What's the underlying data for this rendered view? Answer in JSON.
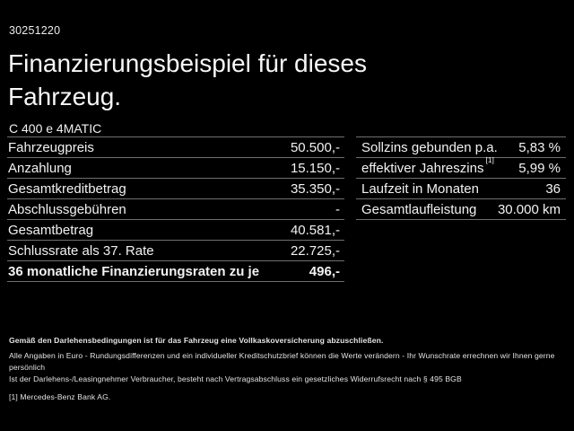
{
  "page": {
    "background": "#000000",
    "text_color": "#f2f2f2",
    "divider_color": "#6f6f6f"
  },
  "header": {
    "ref_number": "30251220",
    "title_line1": "Finanzierungsbeispiel für dieses",
    "title_line2": "Fahrzeug.",
    "model": "C 400 e 4MATIC"
  },
  "left_table": {
    "rows": [
      {
        "label": "Fahrzeugpreis",
        "value": "50.500,-"
      },
      {
        "label": "Anzahlung",
        "value": "15.150,-"
      },
      {
        "label": "Gesamtkreditbetrag",
        "value": "35.350,-"
      },
      {
        "label": "Abschlussgebühren",
        "value": "-"
      },
      {
        "label": "Gesamtbetrag",
        "value": "40.581,-"
      },
      {
        "label": "Schlussrate als 37. Rate",
        "value": "22.725,-"
      },
      {
        "label": "36 monatliche Finanzierungsraten zu je",
        "value": "496,-"
      }
    ]
  },
  "right_table": {
    "rows": [
      {
        "label": "Sollzins gebunden p.a.",
        "sup": "",
        "value": "5,83 %"
      },
      {
        "label": "effektiver Jahreszins",
        "sup": "[1]",
        "value": "5,99 %"
      },
      {
        "label": "Laufzeit in Monaten",
        "sup": "",
        "value": "36"
      },
      {
        "label": "Gesamtlaufleistung",
        "sup": "",
        "value": "30.000 km"
      }
    ]
  },
  "footer": {
    "line1": "Gemäß den Darlehensbedingungen ist für das Fahrzeug eine Vollkaskoversicherung abzuschließen.",
    "line2": "Alle Angaben in Euro - Rundungsdifferenzen und ein individueller Kreditschutzbrief können die Werte verändern - Ihr Wunschrate errechnen wir Ihnen gerne persönlich",
    "line3": "Ist der Darlehens-/Leasingnehmer Verbraucher, besteht nach Vertragsabschluss ein gesetzliches Widerrufsrecht nach § 495 BGB",
    "line4": "[1] Mercedes-Benz Bank AG."
  }
}
